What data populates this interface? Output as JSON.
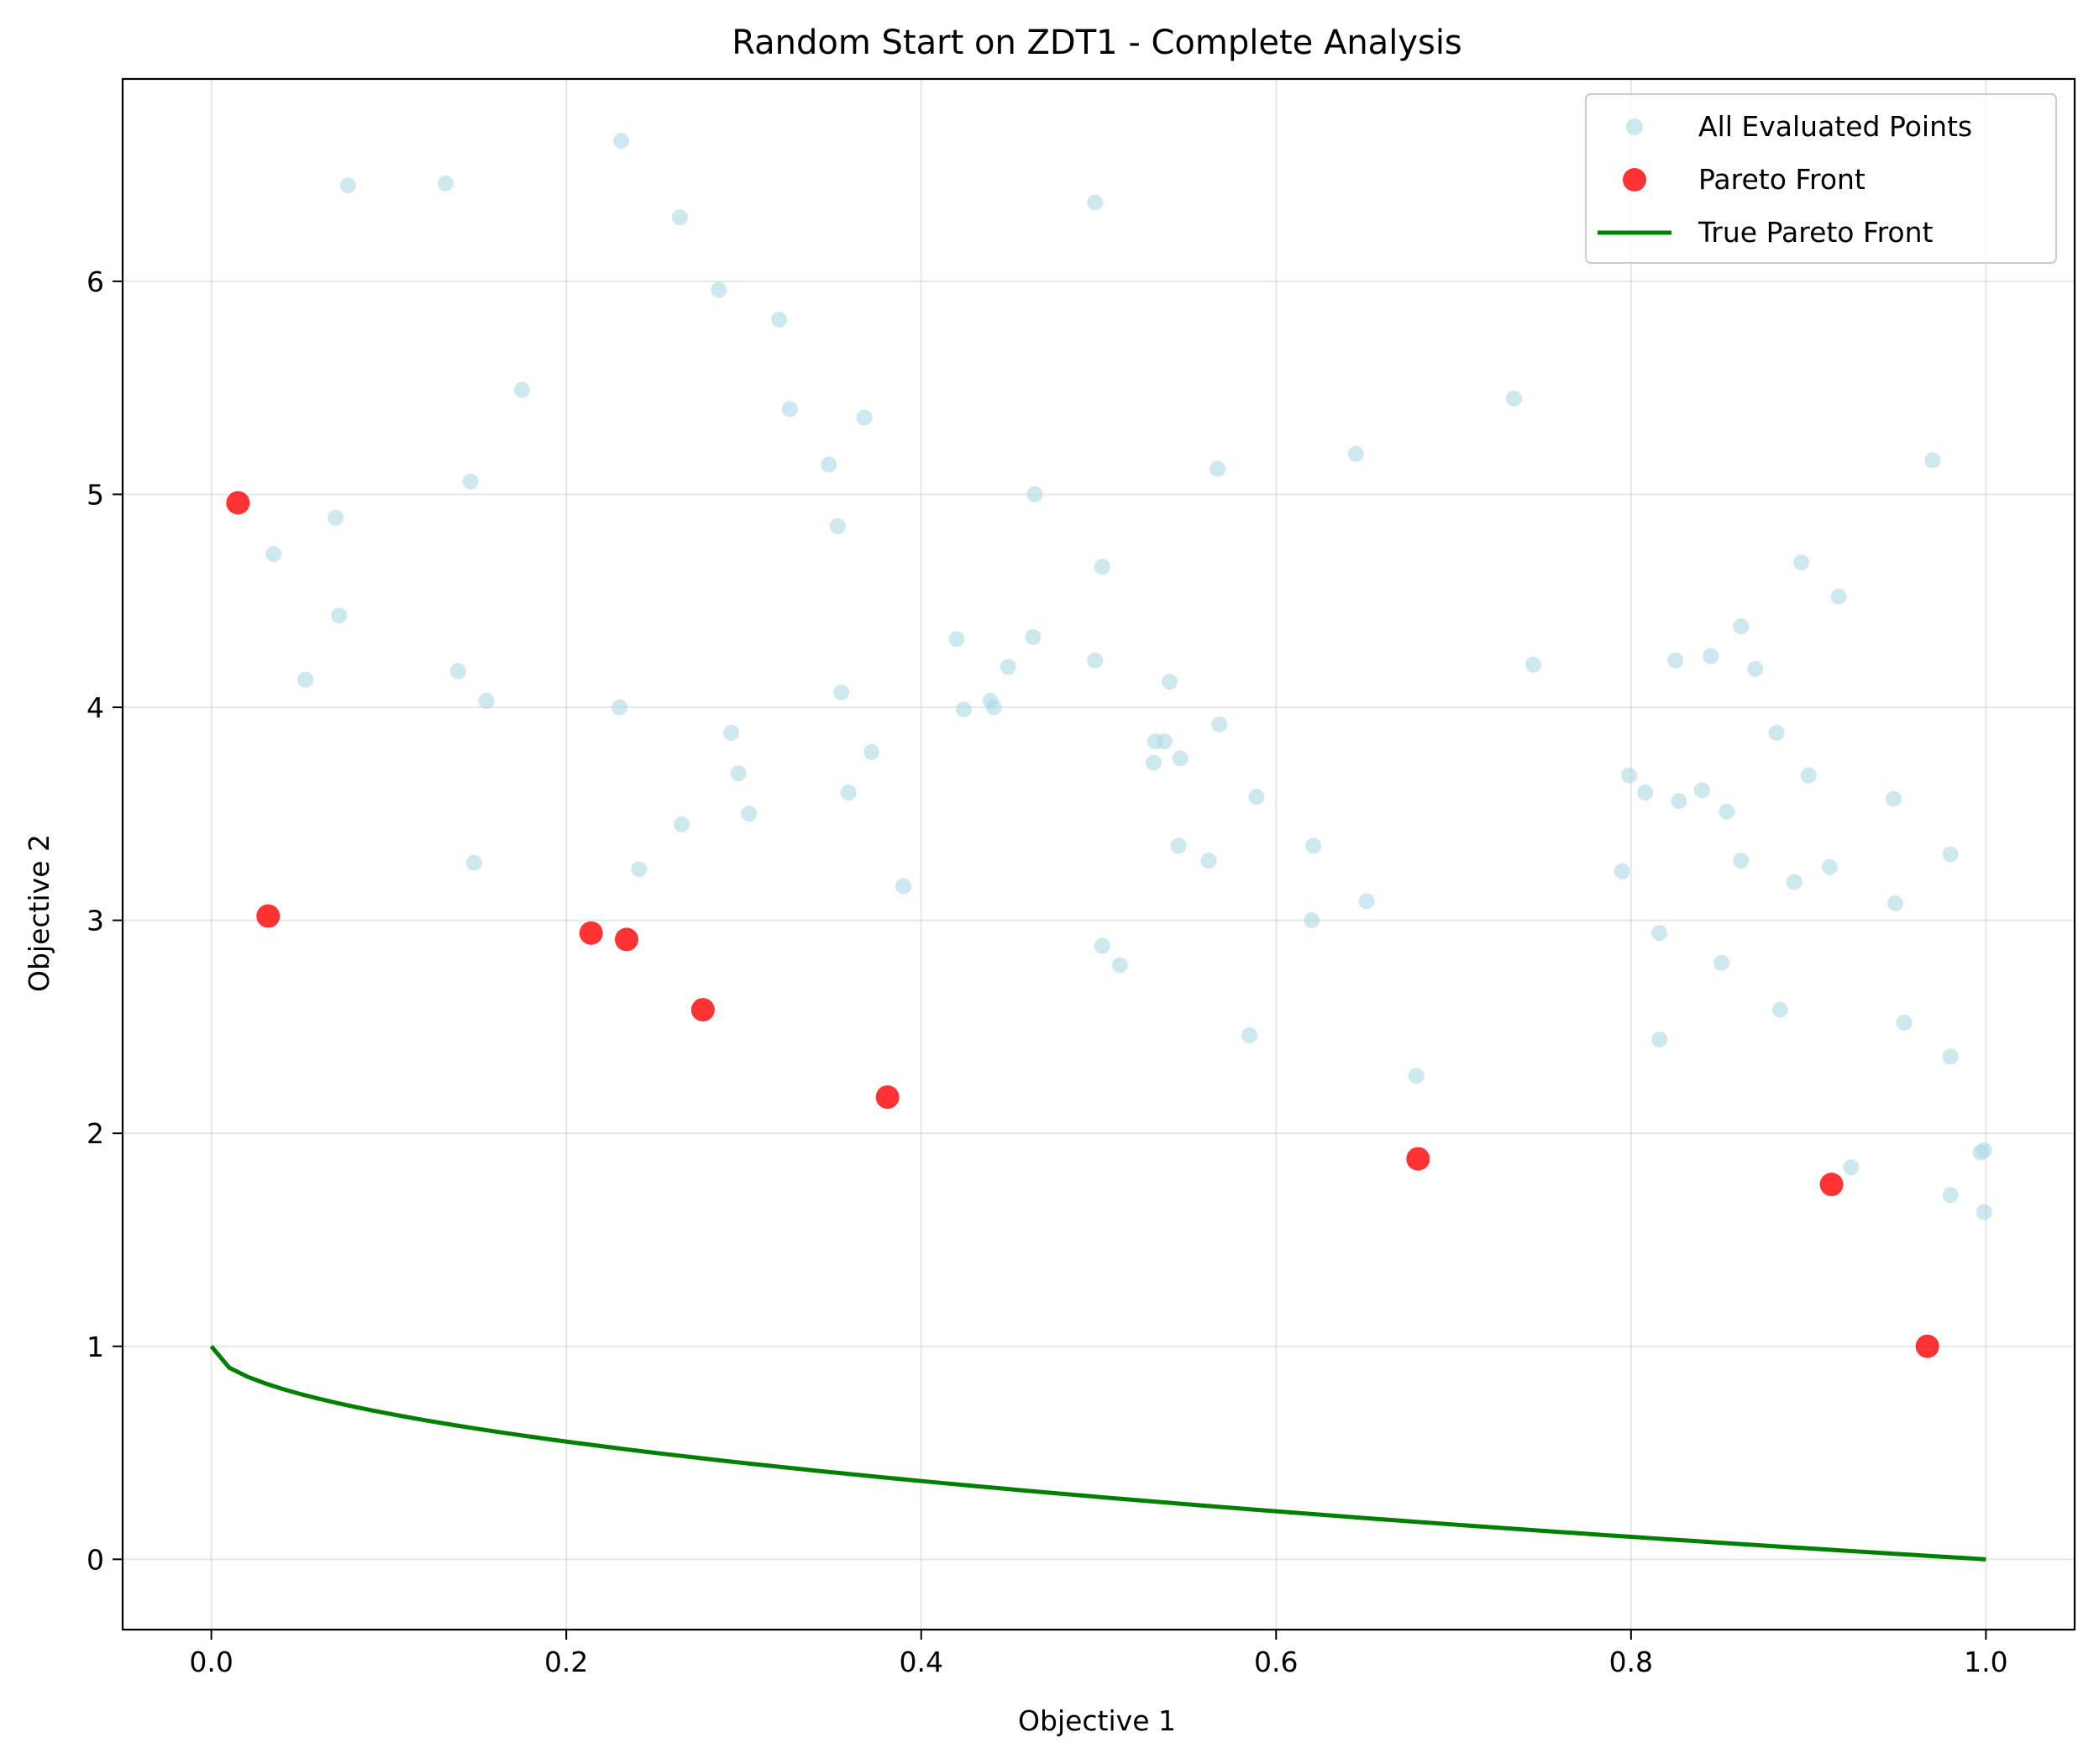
{
  "chart_data": {
    "type": "scatter",
    "title": "Random Start on ZDT1 - Complete Analysis",
    "xlabel": "Objective 1",
    "ylabel": "Objective 2",
    "xlim": [
      -0.05,
      1.05
    ],
    "ylim": [
      -0.33,
      6.95
    ],
    "x_ticks": [
      "0.0",
      "0.2",
      "0.4",
      "0.6",
      "0.8",
      "1.0"
    ],
    "x_tick_values": [
      0.0,
      0.2,
      0.4,
      0.6,
      0.8,
      1.0
    ],
    "y_ticks": [
      "0",
      "1",
      "2",
      "3",
      "4",
      "5",
      "6"
    ],
    "y_tick_values": [
      0,
      1,
      2,
      3,
      4,
      5,
      6
    ],
    "grid": true,
    "legend_position": "top-right",
    "legend": [
      {
        "label": "All Evaluated Points",
        "kind": "marker",
        "color": "#add8e6"
      },
      {
        "label": "Pareto Front",
        "kind": "marker",
        "color": "#ff0000"
      },
      {
        "label": "True Pareto Front",
        "kind": "line",
        "color": "#008000"
      }
    ],
    "series": [
      {
        "name": "All Evaluated Points",
        "kind": "scatter",
        "color": "#add8e6",
        "points": [
          [
            0.077,
            6.45
          ],
          [
            0.132,
            6.46
          ],
          [
            0.231,
            6.66
          ],
          [
            0.264,
            6.3
          ],
          [
            0.286,
            5.96
          ],
          [
            0.32,
            5.82
          ],
          [
            0.498,
            6.37
          ],
          [
            0.175,
            5.49
          ],
          [
            0.326,
            5.4
          ],
          [
            0.368,
            5.36
          ],
          [
            0.734,
            5.45
          ],
          [
            0.146,
            5.06
          ],
          [
            0.348,
            5.14
          ],
          [
            0.567,
            5.12
          ],
          [
            0.645,
            5.19
          ],
          [
            0.97,
            5.16
          ],
          [
            0.07,
            4.89
          ],
          [
            0.353,
            4.85
          ],
          [
            0.464,
            5.0
          ],
          [
            0.035,
            4.72
          ],
          [
            0.072,
            4.43
          ],
          [
            0.502,
            4.66
          ],
          [
            0.896,
            4.68
          ],
          [
            0.917,
            4.52
          ],
          [
            0.053,
            4.13
          ],
          [
            0.139,
            4.17
          ],
          [
            0.155,
            4.03
          ],
          [
            0.23,
            4.0
          ],
          [
            0.355,
            4.07
          ],
          [
            0.42,
            4.32
          ],
          [
            0.424,
            3.99
          ],
          [
            0.439,
            4.03
          ],
          [
            0.441,
            4.0
          ],
          [
            0.449,
            4.19
          ],
          [
            0.463,
            4.33
          ],
          [
            0.498,
            4.22
          ],
          [
            0.54,
            4.12
          ],
          [
            0.745,
            4.2
          ],
          [
            0.825,
            4.22
          ],
          [
            0.845,
            4.24
          ],
          [
            0.862,
            4.38
          ],
          [
            0.87,
            4.18
          ],
          [
            0.293,
            3.88
          ],
          [
            0.297,
            3.69
          ],
          [
            0.372,
            3.79
          ],
          [
            0.531,
            3.74
          ],
          [
            0.532,
            3.84
          ],
          [
            0.537,
            3.84
          ],
          [
            0.546,
            3.76
          ],
          [
            0.568,
            3.92
          ],
          [
            0.882,
            3.88
          ],
          [
            0.303,
            3.5
          ],
          [
            0.359,
            3.6
          ],
          [
            0.589,
            3.58
          ],
          [
            0.799,
            3.68
          ],
          [
            0.808,
            3.6
          ],
          [
            0.827,
            3.56
          ],
          [
            0.84,
            3.61
          ],
          [
            0.854,
            3.51
          ],
          [
            0.9,
            3.68
          ],
          [
            0.948,
            3.57
          ],
          [
            0.148,
            3.27
          ],
          [
            0.241,
            3.24
          ],
          [
            0.265,
            3.45
          ],
          [
            0.39,
            3.16
          ],
          [
            0.545,
            3.35
          ],
          [
            0.562,
            3.28
          ],
          [
            0.621,
            3.35
          ],
          [
            0.795,
            3.23
          ],
          [
            0.862,
            3.28
          ],
          [
            0.892,
            3.18
          ],
          [
            0.912,
            3.25
          ],
          [
            0.98,
            3.31
          ],
          [
            0.62,
            3.0
          ],
          [
            0.651,
            3.09
          ],
          [
            0.949,
            3.08
          ],
          [
            0.816,
            2.94
          ],
          [
            0.502,
            2.88
          ],
          [
            0.512,
            2.79
          ],
          [
            0.851,
            2.8
          ],
          [
            0.884,
            2.58
          ],
          [
            0.585,
            2.46
          ],
          [
            0.816,
            2.44
          ],
          [
            0.954,
            2.52
          ],
          [
            0.679,
            2.27
          ],
          [
            0.98,
            2.36
          ],
          [
            0.924,
            1.84
          ],
          [
            0.997,
            1.91
          ],
          [
            0.999,
            1.92
          ],
          [
            0.98,
            1.71
          ],
          [
            0.999,
            1.63
          ]
        ]
      },
      {
        "name": "Pareto Front",
        "kind": "scatter",
        "color": "#ff0000",
        "points": [
          [
            0.015,
            4.96
          ],
          [
            0.032,
            3.02
          ],
          [
            0.214,
            2.94
          ],
          [
            0.234,
            2.91
          ],
          [
            0.277,
            2.58
          ],
          [
            0.381,
            2.17
          ],
          [
            0.68,
            1.88
          ],
          [
            0.913,
            1.76
          ],
          [
            0.967,
            1.0
          ]
        ]
      },
      {
        "name": "True Pareto Front",
        "kind": "line",
        "color": "#008000",
        "formula": "y = 1 - sqrt(x)",
        "x_range": [
          0,
          1
        ]
      }
    ]
  }
}
